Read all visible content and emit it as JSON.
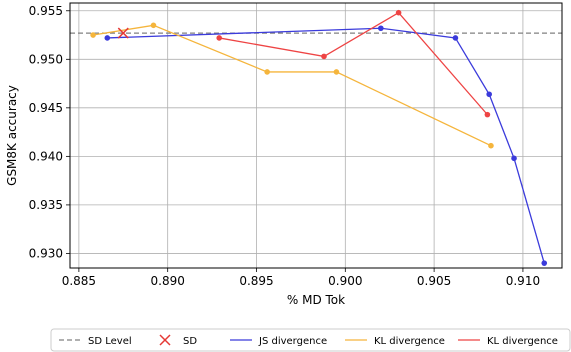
{
  "chart_data": {
    "type": "line",
    "xlabel": "% MD Tok",
    "ylabel": "GSM8K accuracy",
    "xlim": [
      0.8845,
      0.9122
    ],
    "ylim": [
      0.9285,
      0.9558
    ],
    "x_ticks": [
      "0.885",
      "0.890",
      "0.895",
      "0.900",
      "0.905",
      "0.910"
    ],
    "x_tick_values": [
      0.885,
      0.89,
      0.895,
      0.9,
      0.905,
      0.91
    ],
    "y_ticks": [
      "0.930",
      "0.935",
      "0.940",
      "0.945",
      "0.950",
      "0.955"
    ],
    "y_tick_values": [
      0.93,
      0.935,
      0.94,
      0.945,
      0.95,
      0.955
    ],
    "grid": true,
    "legend_position": "below",
    "reference_line": {
      "name": "SD Level",
      "y": 0.9527,
      "color": "#808080",
      "style": "dashed"
    },
    "marker_point": {
      "name": "SD",
      "x": 0.8875,
      "y": 0.9527,
      "color": "#e53935"
    },
    "series": [
      {
        "name": "JS divergence",
        "color": "#3b3bdb",
        "x": [
          0.8866,
          0.902,
          0.9062,
          0.9081,
          0.9095,
          0.9112
        ],
        "y": [
          0.9522,
          0.9532,
          0.9522,
          0.9464,
          0.9398,
          0.929
        ]
      },
      {
        "name": "KL divergence",
        "color": "#f5b53c",
        "x": [
          0.8858,
          0.8892,
          0.8956,
          0.8995,
          0.9082
        ],
        "y": [
          0.9525,
          0.9535,
          0.9487,
          0.9487,
          0.9411
        ]
      },
      {
        "name": "KL divergence",
        "color": "#ee4444",
        "x": [
          0.8929,
          0.8988,
          0.903,
          0.908
        ],
        "y": [
          0.9522,
          0.9503,
          0.9548,
          0.9443
        ]
      }
    ]
  }
}
